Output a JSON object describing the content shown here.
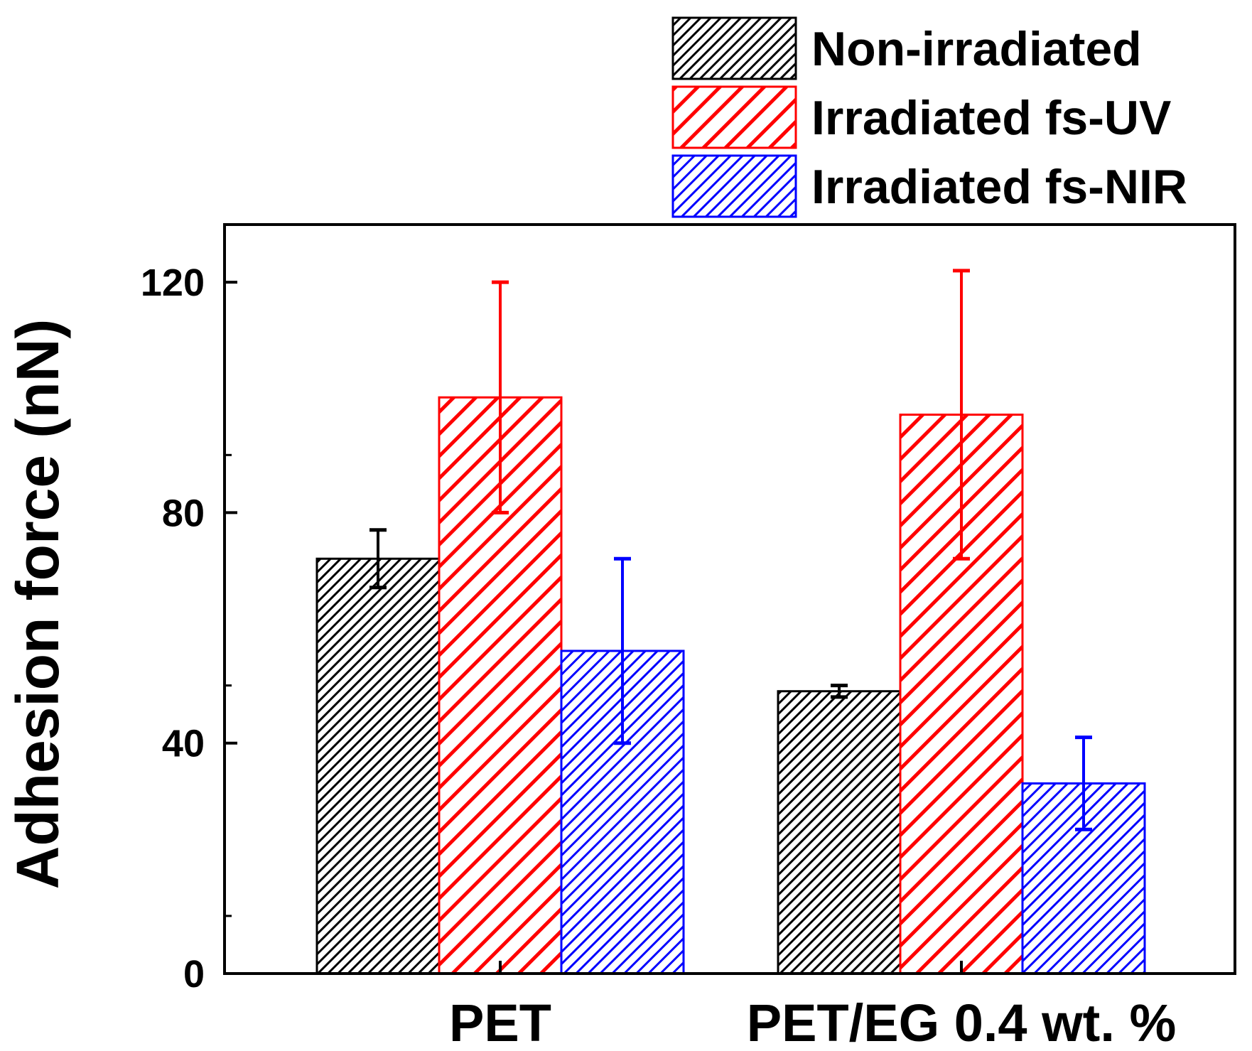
{
  "chart_data": {
    "type": "bar",
    "title": "",
    "xlabel": "",
    "ylabel": "Adhesion force (nN)",
    "ylim": [
      0,
      130
    ],
    "yticks": [
      0,
      40,
      80,
      120
    ],
    "categories": [
      "PET",
      "PET/EG 0.4 wt. %"
    ],
    "series": [
      {
        "name": "Non-irradiated",
        "color": "#000000",
        "values": [
          72,
          49
        ],
        "errors": [
          5,
          1
        ]
      },
      {
        "name": "Irradiated fs-UV",
        "color": "#ff0000",
        "values": [
          100,
          97
        ],
        "errors": [
          20,
          25
        ]
      },
      {
        "name": "Irradiated fs-NIR",
        "color": "#0000ff",
        "values": [
          56,
          33
        ],
        "errors": [
          16,
          8
        ]
      }
    ],
    "legend_position": "top-right",
    "grid": false
  }
}
